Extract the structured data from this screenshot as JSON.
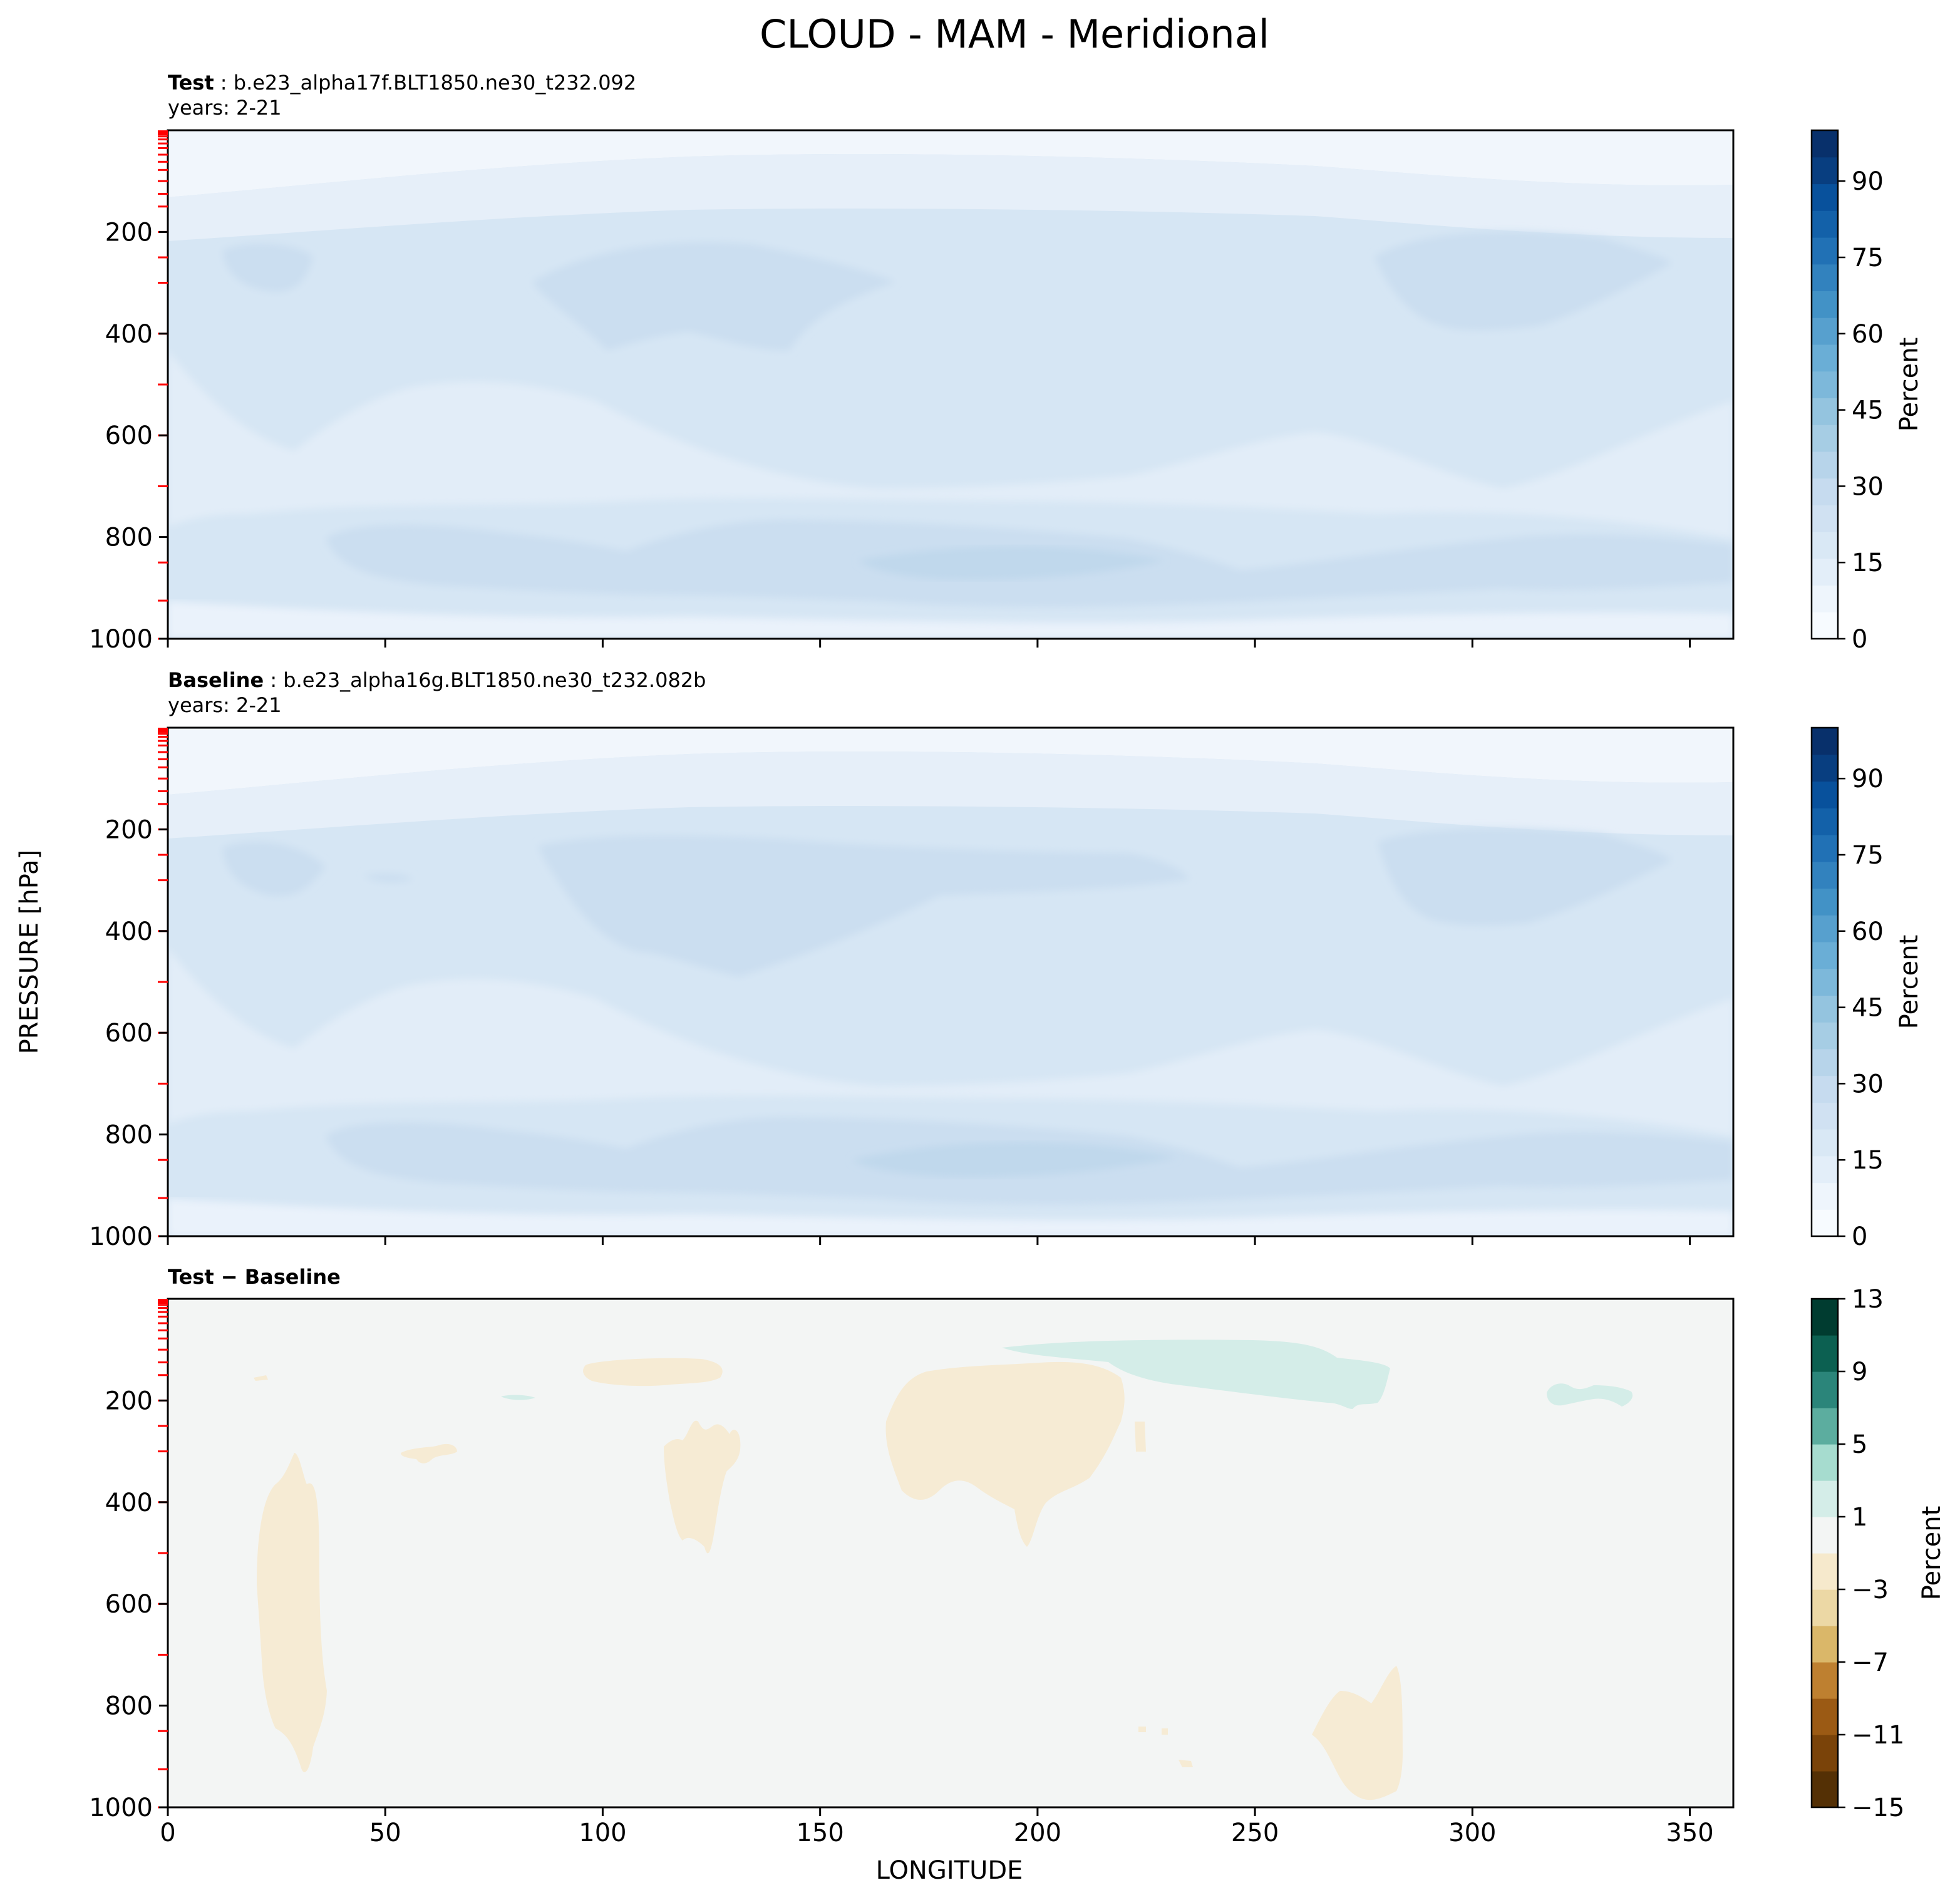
{
  "figure": {
    "title": "CLOUD - MAM - Meridional",
    "ylabel": "PRESSURE [hPa]",
    "xlabel": "LONGITUDE"
  },
  "colors": {
    "blues": [
      "#f7fbff",
      "#eef5fc",
      "#e3eef9",
      "#d9e8f5",
      "#d0e1f2",
      "#c6dbef",
      "#b7d4ea",
      "#a6cde4",
      "#94c4df",
      "#7db8da",
      "#6aaed6",
      "#57a0ce",
      "#4292c6",
      "#3282be",
      "#2171b5",
      "#1361a9",
      "#08519c",
      "#083e80",
      "#08306b"
    ],
    "diverging": [
      "#543005",
      "#7a4309",
      "#9b5a14",
      "#be8030",
      "#dab769",
      "#ecd8a5",
      "#f6e9cc",
      "#f3f5f4",
      "#d4ede8",
      "#a6dccf",
      "#5cad9f",
      "#2b857a",
      "#0c6051",
      "#003c30"
    ],
    "test_base": "#f1f6fc",
    "diff_base": "#f3f5f4",
    "diff_neg": "#f6ebd4",
    "diff_pos": "#d4ede8",
    "model_level_ticks": "#ff0000"
  },
  "chart_data": [
    {
      "type": "heatmap",
      "panel": "test",
      "label_bold": "Test",
      "case": "b.e23_alpha17f.BLT1850.ne30_t232.092",
      "years": "years: 2-21",
      "xlim": [
        0,
        360
      ],
      "ylim": [
        1000,
        0
      ],
      "xticks": [
        "0",
        "50",
        "100",
        "150",
        "200",
        "250",
        "300",
        "350"
      ],
      "yticks": [
        "200",
        "400",
        "600",
        "800",
        "1000"
      ],
      "colorbar": {
        "label": "Percent",
        "range": [
          0,
          100
        ],
        "ticks": [
          "0",
          "15",
          "30",
          "45",
          "60",
          "75",
          "90"
        ]
      },
      "cloud_max_percent": 27
    },
    {
      "type": "heatmap",
      "panel": "baseline",
      "label_bold": "Baseline",
      "case": "b.e23_alpha16g.BLT1850.ne30_t232.082b",
      "years": "years: 2-21",
      "xlim": [
        0,
        360
      ],
      "ylim": [
        1000,
        0
      ],
      "xticks": [
        "0",
        "50",
        "100",
        "150",
        "200",
        "250",
        "300",
        "350"
      ],
      "yticks": [
        "200",
        "400",
        "600",
        "800",
        "1000"
      ],
      "colorbar": {
        "label": "Percent",
        "range": [
          0,
          100
        ],
        "ticks": [
          "0",
          "15",
          "30",
          "45",
          "60",
          "75",
          "90"
        ]
      },
      "cloud_max_percent": 27
    },
    {
      "type": "heatmap",
      "panel": "difference",
      "label_bold": "Test − Baseline",
      "xlim": [
        0,
        360
      ],
      "ylim": [
        1000,
        0
      ],
      "xticks": [
        "0",
        "50",
        "100",
        "150",
        "200",
        "250",
        "300",
        "350"
      ],
      "yticks": [
        "200",
        "400",
        "600",
        "800",
        "1000"
      ],
      "colorbar": {
        "label": "Percent",
        "range": [
          -15,
          13
        ],
        "ticks": [
          "13",
          "9",
          "5",
          "1",
          "−3",
          "−7",
          "−11",
          "−15"
        ]
      },
      "negative_regions": [
        {
          "lon": [
            20,
            37
          ],
          "p": [
            310,
            830
          ]
        },
        {
          "lon": [
            96,
            127
          ],
          "p": [
            130,
            175
          ]
        },
        {
          "lon": [
            113,
            131
          ],
          "p": [
            260,
            500
          ]
        },
        {
          "lon": [
            165,
            220
          ],
          "p": [
            175,
            480
          ]
        },
        {
          "lon": [
            261,
            284
          ],
          "p": [
            775,
            975
          ]
        }
      ],
      "positive_regions": [
        {
          "lon": [
            192,
            281
          ],
          "p": [
            80,
            230
          ]
        },
        {
          "lon": [
            316,
            337
          ],
          "p": [
            165,
            225
          ]
        }
      ]
    }
  ]
}
